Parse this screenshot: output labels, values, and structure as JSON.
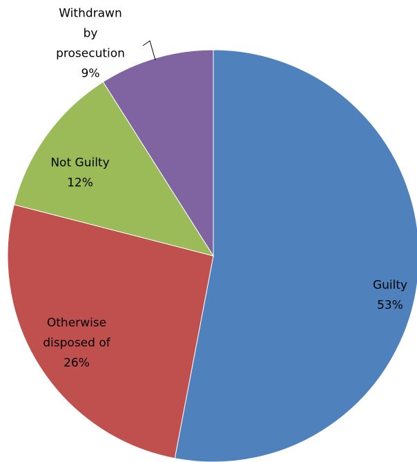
{
  "chart_data": {
    "type": "pie",
    "title": "",
    "start": "top",
    "direction": "clockwise",
    "slices": [
      {
        "label_lines": [
          "Guilty"
        ],
        "pct_label": "53%",
        "value": 53,
        "color": "#4F81BD"
      },
      {
        "label_lines": [
          "Otherwise",
          "disposed of"
        ],
        "pct_label": "26%",
        "value": 26,
        "color": "#C0504D"
      },
      {
        "label_lines": [
          "Not Guilty"
        ],
        "pct_label": "12%",
        "value": 12,
        "color": "#9BBB59"
      },
      {
        "label_lines": [
          "Withdrawn",
          "by",
          "prosecution"
        ],
        "pct_label": "9%",
        "value": 9,
        "color": "#8064A2"
      }
    ]
  }
}
